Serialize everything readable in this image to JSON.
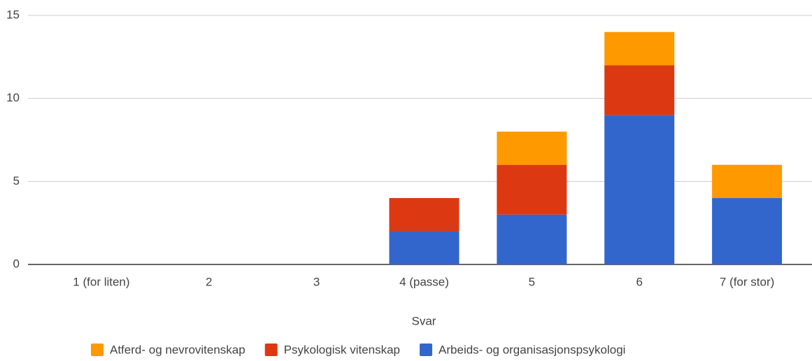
{
  "chart_data": {
    "type": "stacked_bar",
    "x_label": "Svar",
    "categories": [
      "1 (for liten)",
      "2",
      "3",
      "4 (passe)",
      "5",
      "6",
      "7 (for stor)"
    ],
    "series": [
      {
        "name": "Atferd- og nevrovitenskap",
        "color": "#ff9900",
        "values": [
          0,
          0,
          0,
          0,
          2,
          2,
          2
        ]
      },
      {
        "name": "Psykologisk vitenskap",
        "color": "#dc3912",
        "values": [
          0,
          0,
          0,
          2,
          3,
          3,
          0
        ]
      },
      {
        "name": "Arbeids- og organisasjonspsykologi",
        "color": "#3366cc",
        "values": [
          0,
          0,
          0,
          2,
          3,
          9,
          4
        ]
      }
    ],
    "stack_order": "reverse",
    "ylim": [
      0,
      15
    ],
    "yticks": [
      0,
      5,
      10,
      15
    ],
    "grid": true,
    "legend": "bottom"
  }
}
